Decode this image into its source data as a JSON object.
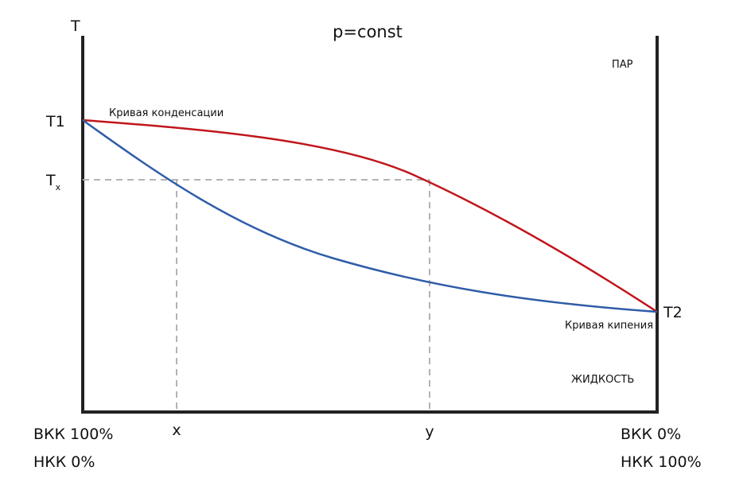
{
  "title": "p=const",
  "axis": {
    "y_label": "T",
    "left_labels": {
      "line1": "ВКК 100%",
      "line2": "НКК 0%"
    },
    "right_labels": {
      "line1": "ВКК 0%",
      "line2": "НКК 100%"
    }
  },
  "points": {
    "t1": "T1",
    "t2": "T2",
    "tx_main": "T",
    "tx_sub": "x",
    "x": "x",
    "y": "y"
  },
  "curves": {
    "condensation": "Кривая конденсации",
    "boiling": "Кривая кипения"
  },
  "regions": {
    "vapor": "ПАР",
    "liquid": "ЖИДКОСТЬ"
  },
  "colors": {
    "condensation_curve": "#c0161c",
    "boiling_curve": "#2f5ca8",
    "axes": "#222222",
    "guide_lines": "#b3b3b3"
  }
}
